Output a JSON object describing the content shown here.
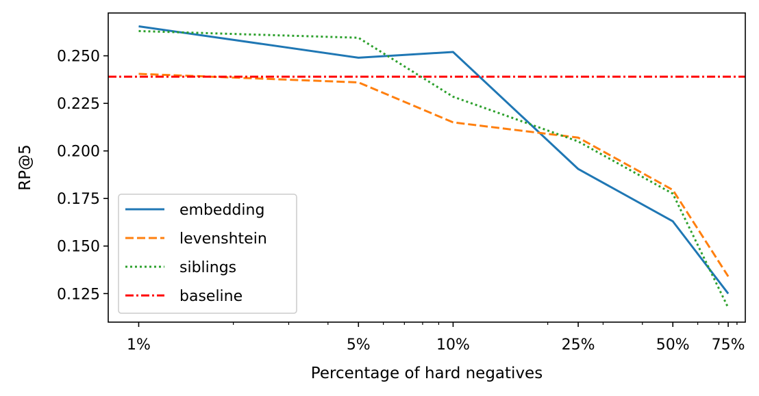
{
  "chart_data": {
    "type": "line",
    "title": "",
    "xlabel": "Percentage of hard negatives",
    "ylabel": "RP@5",
    "x_scale": "log",
    "x": [
      1,
      5,
      10,
      25,
      50,
      75
    ],
    "x_tick_labels": [
      "1%",
      "5%",
      "10%",
      "25%",
      "50%",
      "75%"
    ],
    "xlim": [
      0.8,
      85
    ],
    "ylim": [
      0.11,
      0.2725
    ],
    "y_ticks": [
      0.125,
      0.15,
      0.175,
      0.2,
      0.225,
      0.25
    ],
    "y_tick_labels": [
      "0.125",
      "0.150",
      "0.175",
      "0.200",
      "0.225",
      "0.250"
    ],
    "grid": false,
    "legend_position": "lower-left",
    "series": [
      {
        "name": "embedding",
        "color": "#1f77b4",
        "dash": "solid",
        "values": [
          0.2655,
          0.249,
          0.252,
          0.1905,
          0.163,
          0.125
        ]
      },
      {
        "name": "levenshtein",
        "color": "#ff7f0e",
        "dash": "dashed",
        "values": [
          0.2405,
          0.236,
          0.215,
          0.207,
          0.1795,
          0.134
        ]
      },
      {
        "name": "siblings",
        "color": "#2ca02c",
        "dash": "dotted",
        "values": [
          0.263,
          0.2595,
          0.2285,
          0.205,
          0.1775,
          0.1175
        ]
      },
      {
        "name": "baseline",
        "color": "#ff0000",
        "dash": "dashdot",
        "constant": 0.239
      }
    ]
  }
}
